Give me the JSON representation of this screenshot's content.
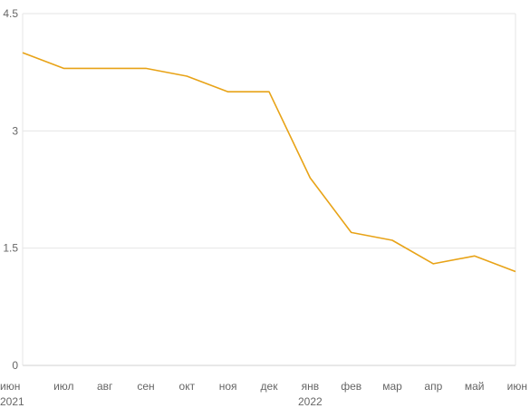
{
  "chart_data": {
    "type": "line",
    "x": [
      "июн",
      "июл",
      "авг",
      "сен",
      "окт",
      "ноя",
      "дек",
      "янв",
      "фев",
      "мар",
      "апр",
      "май",
      "июн"
    ],
    "year_labels": [
      {
        "label": "2021",
        "at": "июн"
      },
      {
        "label": "2022",
        "at": "янв"
      }
    ],
    "series": [
      {
        "values": [
          4.0,
          3.8,
          3.8,
          3.8,
          3.7,
          3.5,
          3.5,
          2.4,
          1.7,
          1.6,
          1.3,
          1.4,
          1.2
        ],
        "color": "#e8a317"
      }
    ],
    "y_ticks": [
      "0",
      "1.5",
      "3",
      "4.5"
    ],
    "ylim": [
      0,
      4.5
    ],
    "grid": true,
    "legend": "none"
  }
}
